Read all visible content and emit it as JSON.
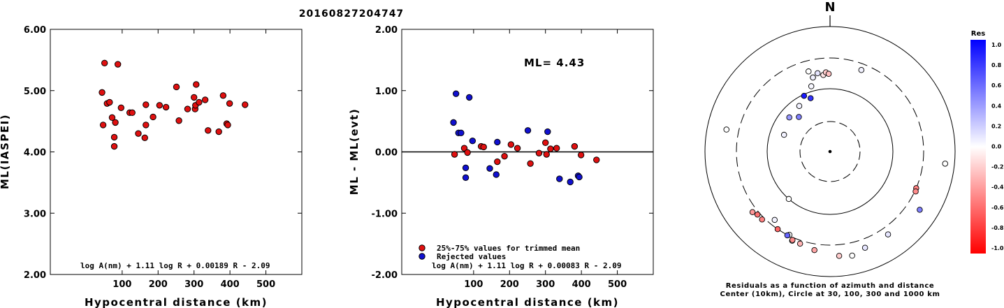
{
  "title": "20160827204747",
  "chart_data": [
    {
      "type": "scatter",
      "xlabel": "Hypocentral distance (km)",
      "ylabel": "ML(IASPEI)",
      "xlim": [
        -100,
        600
      ],
      "ylim": [
        2.0,
        6.0
      ],
      "xticks": [
        "100",
        "200",
        "300",
        "400",
        "500"
      ],
      "yticks": [
        "2.00",
        "3.00",
        "4.00",
        "5.00",
        "6.00"
      ],
      "annotation": "log A(nm) + 1.11 log R + 0.00189 R - 2.09",
      "series": [
        {
          "color": "#e01010",
          "points": [
            [
              44,
              4.97
            ],
            [
              47,
              4.44
            ],
            [
              51,
              5.45
            ],
            [
              58,
              4.79
            ],
            [
              65,
              4.81
            ],
            [
              72,
              4.56
            ],
            [
              78,
              4.24
            ],
            [
              78,
              4.09
            ],
            [
              81,
              4.48
            ],
            [
              88,
              5.43
            ],
            [
              97,
              4.72
            ],
            [
              121,
              4.64
            ],
            [
              128,
              4.64
            ],
            [
              145,
              4.3
            ],
            [
              163,
              4.23
            ],
            [
              166,
              4.44
            ],
            [
              166,
              4.77
            ],
            [
              186,
              4.57
            ],
            [
              204,
              4.76
            ],
            [
              222,
              4.73
            ],
            [
              251,
              5.06
            ],
            [
              258,
              4.51
            ],
            [
              282,
              4.7
            ],
            [
              300,
              4.89
            ],
            [
              303,
              4.7
            ],
            [
              304,
              4.76
            ],
            [
              306,
              5.1
            ],
            [
              314,
              4.81
            ],
            [
              331,
              4.85
            ],
            [
              339,
              4.35
            ],
            [
              369,
              4.33
            ],
            [
              381,
              4.92
            ],
            [
              391,
              4.46
            ],
            [
              394,
              4.44
            ],
            [
              399,
              4.79
            ],
            [
              442,
              4.77
            ]
          ]
        }
      ]
    },
    {
      "type": "scatter",
      "xlabel": "Hypocentral distance (km)",
      "ylabel": "ML - ML(evt)",
      "xlim": [
        -100,
        600
      ],
      "ylim": [
        -2.0,
        2.0
      ],
      "xticks": [
        "100",
        "200",
        "300",
        "400",
        "500"
      ],
      "yticks": [
        "-2.00",
        "-1.00",
        "0.00",
        "1.00",
        "2.00"
      ],
      "hline": 0,
      "annotation_main": "ML= 4.43",
      "annotation": "log A(nm) + 1.11 log R + 0.00083 R - 2.09",
      "series": [
        {
          "name": "25%-75% values for trimmed mean",
          "color": "#e01010",
          "points": [
            [
              47,
              -0.04
            ],
            [
              74,
              0.06
            ],
            [
              83,
              -0.01
            ],
            [
              121,
              0.09
            ],
            [
              128,
              0.08
            ],
            [
              166,
              -0.16
            ],
            [
              186,
              -0.07
            ],
            [
              204,
              0.12
            ],
            [
              222,
              0.06
            ],
            [
              258,
              -0.19
            ],
            [
              282,
              -0.02
            ],
            [
              300,
              0.15
            ],
            [
              303,
              -0.04
            ],
            [
              314,
              0.05
            ],
            [
              331,
              0.06
            ],
            [
              381,
              0.09
            ],
            [
              399,
              -0.05
            ],
            [
              442,
              -0.13
            ]
          ]
        },
        {
          "name": "Rejected values",
          "color": "#1010d0",
          "points": [
            [
              44,
              0.48
            ],
            [
              51,
              0.95
            ],
            [
              58,
              0.31
            ],
            [
              65,
              0.31
            ],
            [
              78,
              -0.26
            ],
            [
              78,
              -0.42
            ],
            [
              88,
              0.89
            ],
            [
              97,
              0.18
            ],
            [
              145,
              -0.27
            ],
            [
              163,
              -0.37
            ],
            [
              166,
              0.16
            ],
            [
              251,
              0.35
            ],
            [
              306,
              0.33
            ],
            [
              339,
              -0.44
            ],
            [
              369,
              -0.49
            ],
            [
              391,
              -0.39
            ],
            [
              394,
              -0.41
            ]
          ]
        }
      ]
    },
    {
      "type": "polar",
      "north_label": "N",
      "caption": [
        "Residuals as a function of azimuth and distance",
        "Center (10km), Circle at 30, 100, 300 and 1000 km"
      ],
      "colorbar": {
        "title": "Res",
        "labels": [
          "1.0",
          "0.8",
          "0.6",
          "0.4",
          "0.2",
          "0.0",
          "-0.2",
          "-0.4",
          "-0.6",
          "-0.8",
          "-1.0"
        ],
        "positive_color": "#0000ff",
        "negative_color": "#ff0000"
      },
      "stations": [
        {
          "azimuth": 347,
          "distance_km": 160,
          "residual": 0.0
        },
        {
          "azimuth": 344,
          "distance_km": 120,
          "residual": 0.03
        },
        {
          "azimuth": 347,
          "distance_km": 160,
          "residual": 0.05
        },
        {
          "azimuth": 351,
          "distance_km": 180,
          "residual": 0.1
        },
        {
          "azimuth": 355,
          "distance_km": 165,
          "residual": -0.1
        },
        {
          "azimuth": 357,
          "distance_km": 180,
          "residual": -0.2
        },
        {
          "azimuth": 359,
          "distance_km": 170,
          "residual": -0.25
        },
        {
          "azimuth": 345,
          "distance_km": 205,
          "residual": 0.0
        },
        {
          "azimuth": 21,
          "distance_km": 240,
          "residual": 0.05
        },
        {
          "azimuth": 335,
          "distance_km": 95,
          "residual": 0.9
        },
        {
          "azimuth": 340,
          "distance_km": 80,
          "residual": 0.8
        },
        {
          "azimuth": 326,
          "distance_km": 75,
          "residual": 0.05
        },
        {
          "azimuth": 310,
          "distance_km": 70,
          "residual": 0.4
        },
        {
          "azimuth": 318,
          "distance_km": 55,
          "residual": 0.5
        },
        {
          "azimuth": 290,
          "distance_km": 60,
          "residual": 0.05
        },
        {
          "azimuth": 282,
          "distance_km": 480,
          "residual": 0.0
        },
        {
          "azimuth": 96,
          "distance_km": 700,
          "residual": 0.0
        },
        {
          "azimuth": 113,
          "distance_km": 300,
          "residual": -0.5
        },
        {
          "azimuth": 115,
          "distance_km": 310,
          "residual": -0.45
        },
        {
          "azimuth": 123,
          "distance_km": 500,
          "residual": 0.5
        },
        {
          "azimuth": 145,
          "distance_km": 400,
          "residual": 0.1
        },
        {
          "azimuth": 160,
          "distance_km": 420,
          "residual": 0.1
        },
        {
          "azimuth": 168,
          "distance_km": 490,
          "residual": 0.0
        },
        {
          "azimuth": 175,
          "distance_km": 460,
          "residual": -0.2
        },
        {
          "azimuth": 189,
          "distance_km": 380,
          "residual": -0.35
        },
        {
          "azimuth": 198,
          "distance_km": 340,
          "residual": -0.3
        },
        {
          "azimuth": 203,
          "distance_km": 340,
          "residual": 0.0
        },
        {
          "azimuth": 206,
          "distance_km": 290,
          "residual": 0.0
        },
        {
          "azimuth": 207,
          "distance_km": 305,
          "residual": 0.6
        },
        {
          "azimuth": 203,
          "distance_km": 330,
          "residual": -0.45
        },
        {
          "azimuth": 214,
          "distance_km": 300,
          "residual": -0.6
        },
        {
          "azimuth": 219,
          "distance_km": 245,
          "residual": 0.05
        },
        {
          "azimuth": 225,
          "distance_km": 330,
          "residual": -0.5
        },
        {
          "azimuth": 229,
          "distance_km": 330,
          "residual": -0.55
        },
        {
          "azimuth": 232,
          "distance_km": 360,
          "residual": -0.4
        },
        {
          "azimuth": 221,
          "distance_km": 100,
          "residual": 0.0
        }
      ]
    }
  ]
}
